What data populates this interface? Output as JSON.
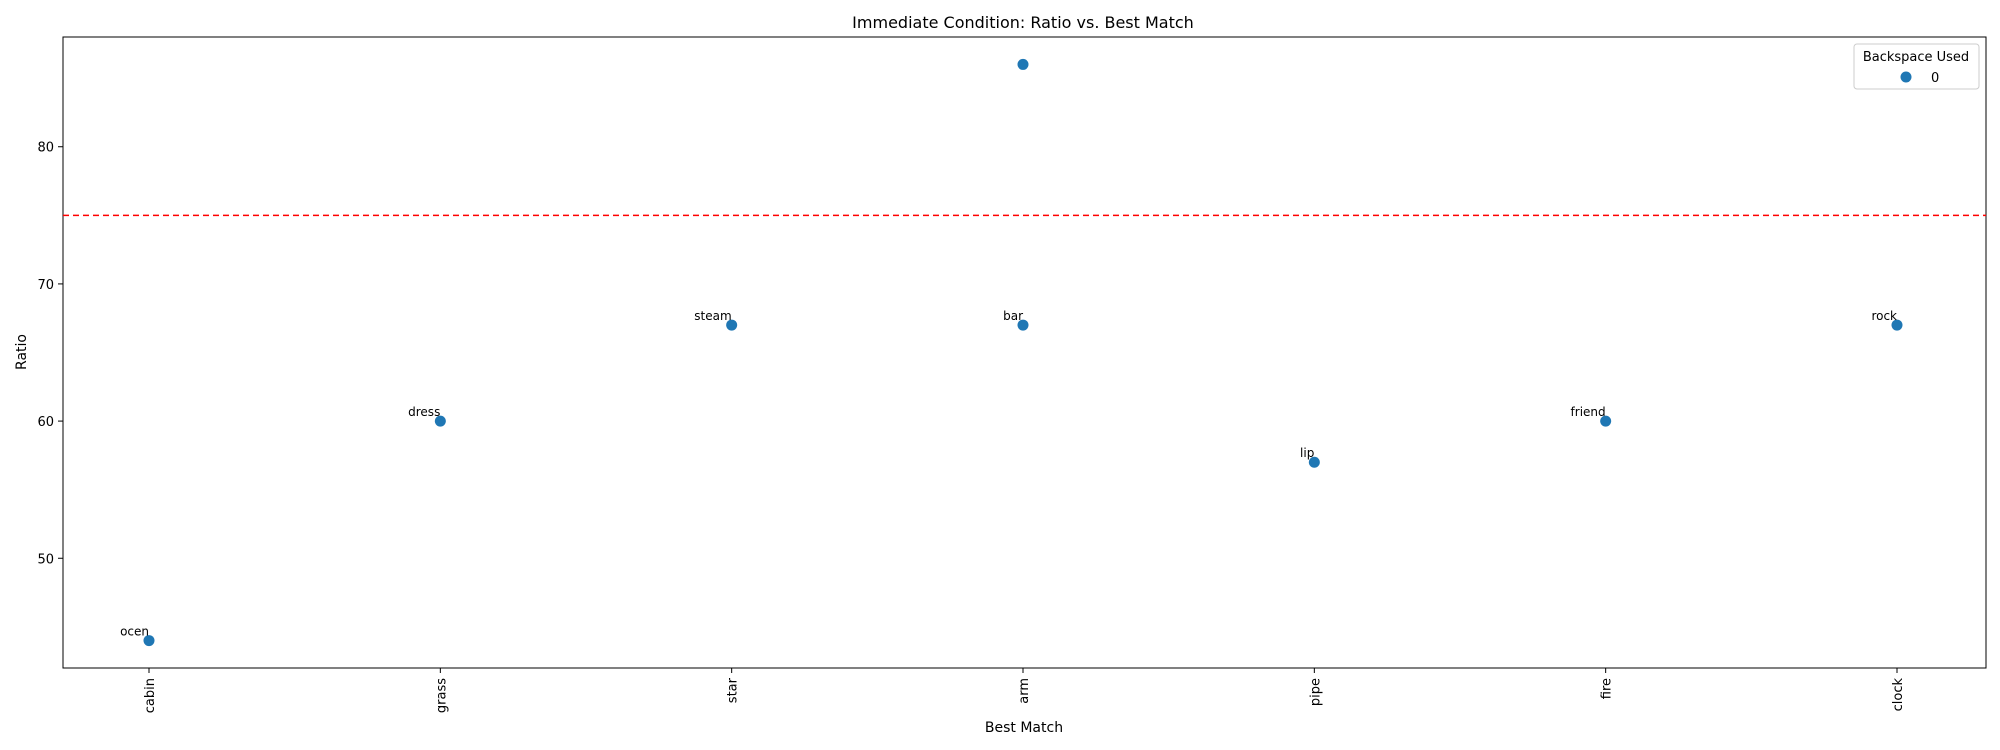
{
  "chart_data": {
    "type": "scatter",
    "title": "Immediate Condition: Ratio vs. Best Match",
    "xlabel": "Best Match",
    "ylabel": "Ratio",
    "categories": [
      "cabin",
      "grass",
      "star",
      "arm",
      "pipe",
      "fire",
      "clock"
    ],
    "y_ticks": [
      50,
      60,
      70,
      80
    ],
    "ylim": [
      42,
      88
    ],
    "grid": false,
    "reference_line": {
      "y": 75,
      "color": "#ff0000",
      "style": "dashed"
    },
    "series": [
      {
        "name": "0",
        "color": "#1f77b4",
        "points": [
          {
            "x": "cabin",
            "y": 44,
            "label": "ocen"
          },
          {
            "x": "grass",
            "y": 60,
            "label": "dress"
          },
          {
            "x": "star",
            "y": 67,
            "label": "steam"
          },
          {
            "x": "arm",
            "y": 86,
            "label": ""
          },
          {
            "x": "arm",
            "y": 67,
            "label": "bar"
          },
          {
            "x": "pipe",
            "y": 57,
            "label": "lip"
          },
          {
            "x": "fire",
            "y": 60,
            "label": "friend"
          },
          {
            "x": "clock",
            "y": 67,
            "label": "rock"
          }
        ]
      }
    ],
    "legend": {
      "title": "Backspace Used",
      "position": "top-right",
      "entries": [
        "0"
      ]
    }
  }
}
